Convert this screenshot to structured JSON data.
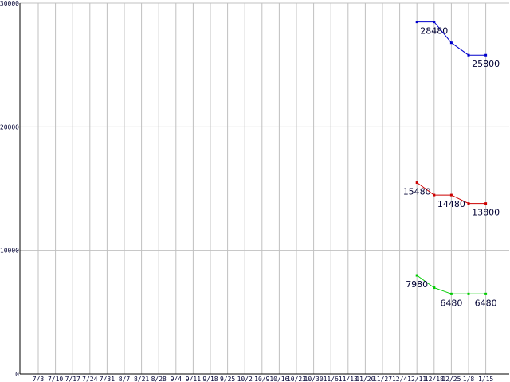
{
  "chart_data": {
    "type": "line",
    "ylim": [
      0,
      30000
    ],
    "yticks": [
      0,
      10000,
      20000,
      30000
    ],
    "ytick_labels": [
      "0",
      "10000",
      "20000",
      "30000"
    ],
    "categories": [
      "7/3",
      "7/10",
      "7/17",
      "7/24",
      "7/31",
      "8/7",
      "8/21",
      "8/28",
      "9/4",
      "9/11",
      "9/18",
      "9/25",
      "10/2",
      "10/9",
      "10/16",
      "10/23",
      "10/30",
      "11/6",
      "11/13",
      "11/20",
      "11/27",
      "12/4",
      "12/11",
      "12/18",
      "12/25",
      "1/8",
      "1/15"
    ],
    "grid": true,
    "series": [
      {
        "color": "#0000cc",
        "x": [
          "12/11",
          "12/18",
          "12/25",
          "1/8",
          "1/15"
        ],
        "values": [
          28480,
          28480,
          26800,
          25800,
          25800
        ],
        "labels": [
          {
            "at": "12/18",
            "text": "28480",
            "pos": "below"
          },
          {
            "at": "1/15",
            "text": "25800",
            "pos": "below"
          }
        ]
      },
      {
        "color": "#cc0000",
        "x": [
          "12/11",
          "12/18",
          "12/25",
          "1/8",
          "1/15"
        ],
        "values": [
          15480,
          14480,
          14480,
          13800,
          13800
        ],
        "labels": [
          {
            "at": "12/11",
            "text": "15480",
            "pos": "below"
          },
          {
            "at": "12/25",
            "text": "14480",
            "pos": "below"
          },
          {
            "at": "1/15",
            "text": "13800",
            "pos": "below"
          }
        ]
      },
      {
        "color": "#00cc00",
        "x": [
          "12/11",
          "12/18",
          "12/25",
          "1/8",
          "1/15"
        ],
        "values": [
          7980,
          6980,
          6480,
          6480,
          6480
        ],
        "labels": [
          {
            "at": "12/11",
            "text": "7980",
            "pos": "below"
          },
          {
            "at": "12/25",
            "text": "6480",
            "pos": "below"
          },
          {
            "at": "1/15",
            "text": "6480",
            "pos": "below"
          }
        ]
      }
    ]
  }
}
